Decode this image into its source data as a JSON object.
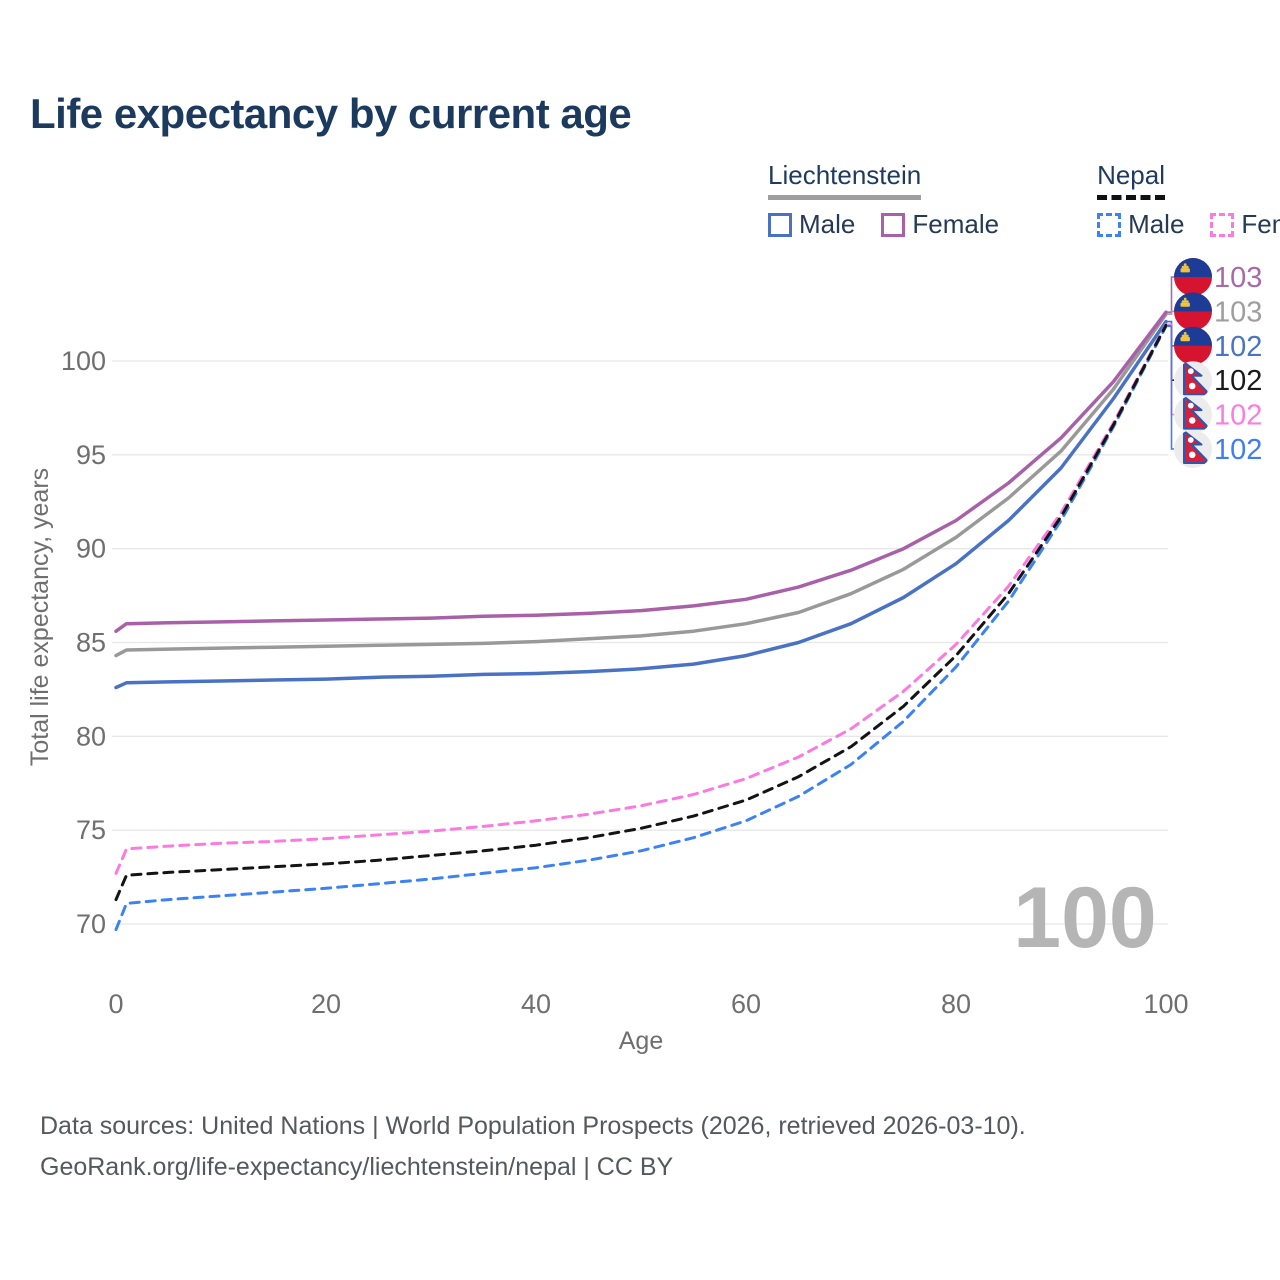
{
  "title": "Life expectancy by current age",
  "legend": {
    "groups": [
      {
        "name": "Liechtenstein",
        "line_style": "solid",
        "underline_color": "#9e9e9e",
        "items": [
          {
            "label": "Male",
            "color": "#4a72c4",
            "dashed": false
          },
          {
            "label": "Female",
            "color": "#a861a8",
            "dashed": false
          }
        ]
      },
      {
        "name": "Nepal",
        "line_style": "dashed",
        "underline_color": "#111111",
        "items": [
          {
            "label": "Male",
            "color": "#3c82f2",
            "dashed": true
          },
          {
            "label": "Female",
            "color": "#fb7ae0",
            "dashed": true
          }
        ]
      }
    ]
  },
  "chart_data": {
    "type": "line",
    "title": "Life expectancy by current age",
    "xlabel": "Age",
    "ylabel": "Total life expectancy, years",
    "x_ticks": [
      0,
      20,
      40,
      60,
      80,
      100
    ],
    "y_ticks": [
      70,
      75,
      80,
      85,
      90,
      95,
      100
    ],
    "xlim": [
      0,
      100
    ],
    "ylim": [
      70,
      100
    ],
    "grid": true,
    "legend_position": "top-right",
    "x": [
      0,
      1,
      5,
      10,
      15,
      20,
      25,
      30,
      35,
      40,
      45,
      50,
      55,
      60,
      65,
      70,
      75,
      80,
      85,
      90,
      95,
      100
    ],
    "series": [
      {
        "name": "Liechtenstein Male",
        "country": "liechtenstein",
        "sex": "male",
        "color": "#4a72c4",
        "dash": "solid",
        "end_label": "102",
        "values": [
          82.6,
          82.85,
          82.9,
          82.95,
          83.0,
          83.05,
          83.15,
          83.2,
          83.3,
          83.35,
          83.45,
          83.6,
          83.85,
          84.3,
          85.0,
          86.0,
          87.4,
          89.2,
          91.5,
          94.3,
          98.0,
          102.1
        ]
      },
      {
        "name": "Liechtenstein Female",
        "country": "liechtenstein",
        "sex": "female",
        "color": "#a861a8",
        "dash": "solid",
        "end_label": "103",
        "values": [
          85.6,
          86.0,
          86.05,
          86.1,
          86.15,
          86.2,
          86.25,
          86.3,
          86.4,
          86.45,
          86.55,
          86.7,
          86.95,
          87.3,
          87.95,
          88.85,
          90.0,
          91.5,
          93.5,
          95.9,
          98.9,
          102.6
        ]
      },
      {
        "name": "Liechtenstein Both sexes",
        "country": "liechtenstein",
        "sex": "combined",
        "color": "#999999",
        "dash": "solid",
        "end_label": "103",
        "values": [
          84.3,
          84.6,
          84.65,
          84.7,
          84.75,
          84.8,
          84.85,
          84.9,
          84.95,
          85.05,
          85.2,
          85.35,
          85.6,
          86.0,
          86.6,
          87.6,
          88.9,
          90.6,
          92.7,
          95.2,
          98.5,
          102.5
        ]
      },
      {
        "name": "Nepal Male",
        "country": "nepal",
        "sex": "male",
        "color": "#3c82f2",
        "dash": "dashed",
        "end_label": "102",
        "values": [
          69.7,
          71.1,
          71.3,
          71.5,
          71.7,
          71.9,
          72.15,
          72.4,
          72.7,
          73.0,
          73.4,
          73.9,
          74.6,
          75.5,
          76.8,
          78.5,
          80.8,
          83.7,
          87.2,
          91.5,
          96.5,
          101.85
        ]
      },
      {
        "name": "Nepal Female",
        "country": "nepal",
        "sex": "female",
        "color": "#fb7ae0",
        "dash": "dashed",
        "end_label": "102",
        "values": [
          72.7,
          74.0,
          74.15,
          74.3,
          74.4,
          74.55,
          74.75,
          74.95,
          75.2,
          75.5,
          75.85,
          76.3,
          76.9,
          77.75,
          78.9,
          80.4,
          82.4,
          84.9,
          88.0,
          91.9,
          96.7,
          101.95
        ]
      },
      {
        "name": "Nepal Both sexes",
        "country": "nepal",
        "sex": "combined",
        "color": "#141414",
        "dash": "dashed",
        "end_label": "102",
        "values": [
          71.3,
          72.6,
          72.75,
          72.9,
          73.05,
          73.2,
          73.4,
          73.65,
          73.9,
          74.2,
          74.6,
          75.1,
          75.75,
          76.6,
          77.85,
          79.45,
          81.6,
          84.3,
          87.6,
          91.7,
          96.6,
          101.9
        ]
      }
    ],
    "end_labels": [
      {
        "value": "103",
        "color": "#a869a8",
        "flag": "liechtenstein",
        "series_index": 1
      },
      {
        "value": "103",
        "color": "#9e9e9e",
        "flag": "liechtenstein",
        "series_index": 2
      },
      {
        "value": "102",
        "color": "#4a74c4",
        "flag": "liechtenstein",
        "series_index": 0
      },
      {
        "value": "102",
        "color": "#1a1a1a",
        "flag": "nepal",
        "series_index": 5
      },
      {
        "value": "102",
        "color": "#f97ee2",
        "flag": "nepal",
        "series_index": 4
      },
      {
        "value": "102",
        "color": "#3f7ef0",
        "flag": "nepal",
        "series_index": 3
      }
    ]
  },
  "watermark": "100",
  "footer": {
    "line1": "Data sources: United Nations | World Population Prospects (2026, retrieved 2026-03-10).",
    "line2": "GeoRank.org/life-expectancy/liechtenstein/nepal | CC BY"
  }
}
